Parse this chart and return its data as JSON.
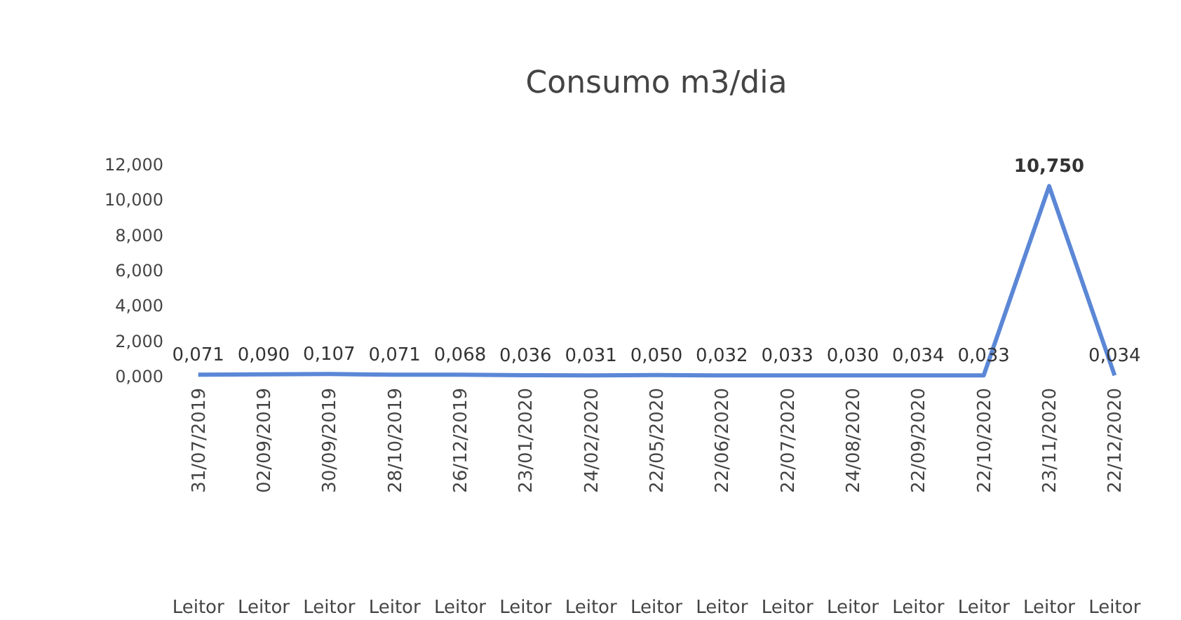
{
  "chart_data": {
    "type": "line",
    "title": "Consumo m3/dia",
    "categories": [
      "31/07/2019",
      "02/09/2019",
      "30/09/2019",
      "28/10/2019",
      "26/12/2019",
      "23/01/2020",
      "24/02/2020",
      "22/05/2020",
      "22/06/2020",
      "22/07/2020",
      "24/08/2020",
      "22/09/2020",
      "22/10/2020",
      "23/11/2020",
      "22/12/2020"
    ],
    "series": [
      {
        "color": "#5b87d6",
        "values": [
          0.071,
          0.09,
          0.107,
          0.071,
          0.068,
          0.036,
          0.031,
          0.05,
          0.032,
          0.033,
          0.03,
          0.034,
          0.033,
          10.75,
          0.034
        ],
        "value_labels": [
          "0,071",
          "0,090",
          "0,107",
          "0,071",
          "0,068",
          "0,036",
          "0,031",
          "0,050",
          "0,032",
          "0,033",
          "0,030",
          "0,034",
          "0,033",
          "10,750",
          "0,034"
        ]
      }
    ],
    "ylim": [
      0,
      12
    ],
    "yticks": [
      {
        "value": 0,
        "label": "0,000"
      },
      {
        "value": 2,
        "label": "2,000"
      },
      {
        "value": 4,
        "label": "4,000"
      },
      {
        "value": 6,
        "label": "6,000"
      },
      {
        "value": 8,
        "label": "8,000"
      },
      {
        "value": 10,
        "label": "10,000"
      },
      {
        "value": 12,
        "label": "12,000"
      }
    ],
    "annotations": [
      "Leitor",
      "Leitor",
      "Leitor",
      "Leitor",
      "Leitor",
      "Leitor",
      "Leitor",
      "Leitor",
      "Leitor",
      "Leitor",
      "Leitor",
      "Leitor",
      "Leitor",
      "Leitor",
      "Leitor"
    ],
    "marker": "none",
    "line_style": "solid"
  }
}
